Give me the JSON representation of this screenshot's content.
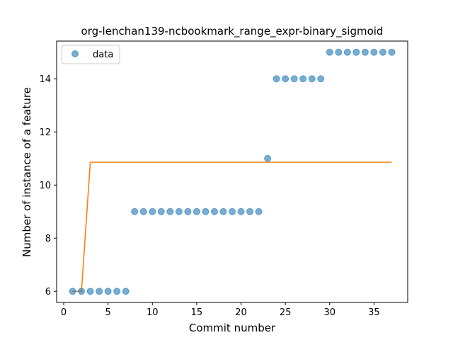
{
  "chart_data": {
    "type": "scatter",
    "title": "org-lenchan139-ncbookmark_range_expr-binary_sigmoid",
    "xlabel": "Commit number",
    "ylabel": "Number of instance of a feature",
    "xlim": [
      -0.8,
      38.8
    ],
    "ylim": [
      5.58,
      15.42
    ],
    "xticks": [
      0,
      5,
      10,
      15,
      20,
      25,
      30,
      35
    ],
    "yticks": [
      6,
      8,
      10,
      12,
      14
    ],
    "grid": false,
    "legend_position": "top-left",
    "legend": [
      {
        "label": "data"
      }
    ],
    "colors": {
      "data": "#1f77b4",
      "fit": "#ff7f0e"
    },
    "series": [
      {
        "name": "data",
        "kind": "scatter",
        "x": [
          1,
          2,
          3,
          4,
          5,
          6,
          7,
          8,
          9,
          10,
          11,
          12,
          13,
          14,
          15,
          16,
          17,
          18,
          19,
          20,
          21,
          22,
          23,
          24,
          25,
          26,
          27,
          28,
          29,
          30,
          31,
          32,
          33,
          34,
          35,
          36,
          37
        ],
        "y": [
          6,
          6,
          6,
          6,
          6,
          6,
          6,
          9,
          9,
          9,
          9,
          9,
          9,
          9,
          9,
          9,
          9,
          9,
          9,
          9,
          9,
          9,
          11,
          14,
          14,
          14,
          14,
          14,
          14,
          15,
          15,
          15,
          15,
          15,
          15,
          15,
          15
        ]
      },
      {
        "kind": "line",
        "x": [
          1,
          2,
          3,
          37
        ],
        "y": [
          6.0,
          6.0,
          10.86,
          10.86
        ]
      }
    ]
  }
}
